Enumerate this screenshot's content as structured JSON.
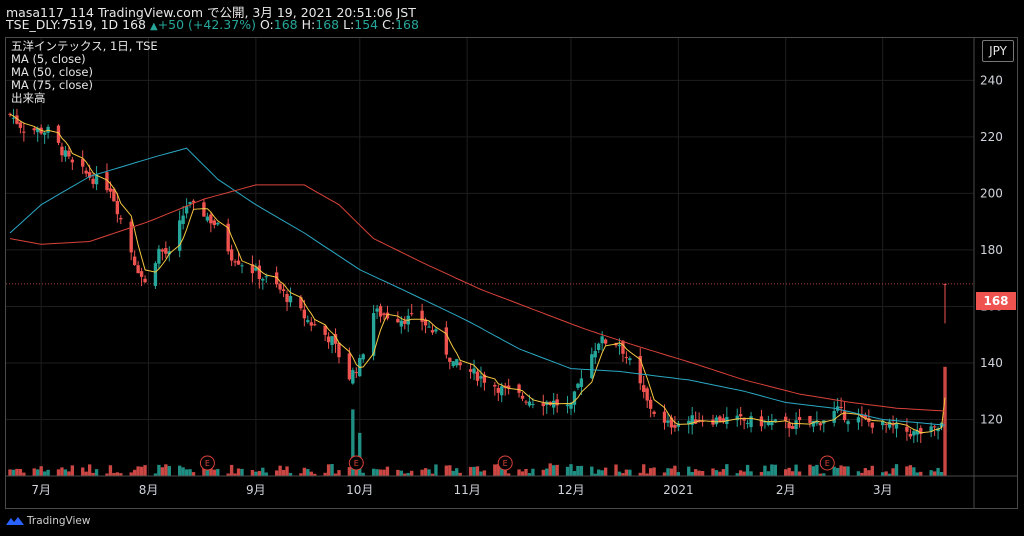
{
  "header": {
    "line1": "masa117_114 TradingView.com で公開, 3月 19, 2021 20:51:06 JST",
    "symbol": "TSE_DLY:7519, 1D 168",
    "change": "+50 (+42.37%)",
    "o_label": "O:",
    "o_val": "168",
    "h_label": "H:",
    "h_val": "168",
    "l_label": "L:",
    "l_val": "154",
    "c_label": "C:",
    "c_val": "168"
  },
  "legend": {
    "title": "五洋インテックス, 1日, TSE",
    "ma5": "MA (5, close)",
    "ma50": "MA (50, close)",
    "ma75": "MA (75, close)",
    "volume": "出来高"
  },
  "currency": "JPY",
  "last_price_label": "168",
  "footer": {
    "logo_text": "TradingView"
  },
  "colors": {
    "up": "#26a69a",
    "down": "#ef5350",
    "ma5": "#f5c842",
    "ma50": "#2ba8c4",
    "ma75": "#d9433a",
    "grid": "#1e1e1e",
    "background": "#000000",
    "earnings": "#d9433a"
  },
  "chart_data": {
    "type": "candlestick",
    "y_axis": {
      "min": 100,
      "max": 255,
      "ticks": [
        120,
        140,
        160,
        180,
        200,
        220,
        240
      ]
    },
    "x_axis_labels": [
      "7月",
      "8月",
      "9月",
      "10月",
      "11月",
      "12月",
      "2021",
      "2月",
      "3月"
    ],
    "x_axis_label_dates": [
      "2020-07-01",
      "2020-08-01",
      "2020-09-01",
      "2020-10-01",
      "2020-11-01",
      "2020-12-01",
      "2021-01-01",
      "2021-02-01",
      "2021-03-01"
    ],
    "date_range": [
      "2020-06-22",
      "2021-03-19"
    ],
    "close_anchors": [
      [
        "2020-06-22",
        228
      ],
      [
        "2020-06-26",
        223
      ],
      [
        "2020-07-03",
        222
      ],
      [
        "2020-07-10",
        210
      ],
      [
        "2020-07-15",
        206
      ],
      [
        "2020-07-21",
        202
      ],
      [
        "2020-07-28",
        176
      ],
      [
        "2020-07-31",
        168
      ],
      [
        "2020-08-04",
        180
      ],
      [
        "2020-08-07",
        178
      ],
      [
        "2020-08-12",
        196
      ],
      [
        "2020-08-17",
        193
      ],
      [
        "2020-08-21",
        188
      ],
      [
        "2020-08-25",
        178
      ],
      [
        "2020-09-01",
        172
      ],
      [
        "2020-09-07",
        167
      ],
      [
        "2020-09-11",
        162
      ],
      [
        "2020-09-16",
        155
      ],
      [
        "2020-09-23",
        148
      ],
      [
        "2020-09-28",
        135
      ],
      [
        "2020-10-01",
        140
      ],
      [
        "2020-10-05",
        158
      ],
      [
        "2020-10-12",
        156
      ],
      [
        "2020-10-19",
        155
      ],
      [
        "2020-10-23",
        150
      ],
      [
        "2020-10-28",
        140
      ],
      [
        "2020-11-05",
        135
      ],
      [
        "2020-11-12",
        130
      ],
      [
        "2020-11-19",
        127
      ],
      [
        "2020-11-26",
        126
      ],
      [
        "2020-12-01",
        124
      ],
      [
        "2020-12-04",
        136
      ],
      [
        "2020-12-09",
        148
      ],
      [
        "2020-12-15",
        147
      ],
      [
        "2020-12-18",
        140
      ],
      [
        "2020-12-23",
        126
      ],
      [
        "2020-12-28",
        118
      ],
      [
        "2021-01-06",
        120
      ],
      [
        "2021-01-15",
        120
      ],
      [
        "2021-01-25",
        119
      ],
      [
        "2021-02-02",
        118
      ],
      [
        "2021-02-10",
        119
      ],
      [
        "2021-02-16",
        123
      ],
      [
        "2021-02-19",
        121
      ],
      [
        "2021-02-25",
        119
      ],
      [
        "2021-03-05",
        117
      ],
      [
        "2021-03-10",
        115
      ],
      [
        "2021-03-16",
        116
      ],
      [
        "2021-03-18",
        118
      ],
      [
        "2021-03-19",
        168
      ]
    ],
    "ma50_anchors": [
      [
        "2020-06-22",
        186
      ],
      [
        "2020-07-01",
        196
      ],
      [
        "2020-07-15",
        206
      ],
      [
        "2020-08-03",
        213
      ],
      [
        "2020-08-12",
        216
      ],
      [
        "2020-08-21",
        205
      ],
      [
        "2020-09-01",
        196
      ],
      [
        "2020-09-15",
        186
      ],
      [
        "2020-10-01",
        173
      ],
      [
        "2020-10-15",
        165
      ],
      [
        "2020-11-01",
        155
      ],
      [
        "2020-11-16",
        145
      ],
      [
        "2020-12-01",
        138
      ],
      [
        "2020-12-15",
        137
      ],
      [
        "2021-01-04",
        134
      ],
      [
        "2021-01-20",
        130
      ],
      [
        "2021-02-01",
        126
      ],
      [
        "2021-02-15",
        124
      ],
      [
        "2021-03-01",
        120
      ],
      [
        "2021-03-19",
        118
      ]
    ],
    "ma75_anchors": [
      [
        "2020-06-22",
        184
      ],
      [
        "2020-07-01",
        182
      ],
      [
        "2020-07-15",
        183
      ],
      [
        "2020-08-01",
        190
      ],
      [
        "2020-08-17",
        198
      ],
      [
        "2020-09-01",
        203
      ],
      [
        "2020-09-15",
        203
      ],
      [
        "2020-09-25",
        196
      ],
      [
        "2020-10-05",
        184
      ],
      [
        "2020-10-20",
        175
      ],
      [
        "2020-11-05",
        166
      ],
      [
        "2020-11-20",
        159
      ],
      [
        "2020-12-05",
        152
      ],
      [
        "2020-12-20",
        146
      ],
      [
        "2021-01-05",
        140
      ],
      [
        "2021-01-20",
        134
      ],
      [
        "2021-02-05",
        129
      ],
      [
        "2021-02-20",
        126
      ],
      [
        "2021-03-05",
        124
      ],
      [
        "2021-03-19",
        123
      ]
    ],
    "last_close": 168,
    "last_day": {
      "date": "2021-03-19",
      "open": 168,
      "high": 168,
      "low": 154,
      "close": 168
    },
    "volume_spikes": [
      [
        "2020-09-29",
        0.85
      ],
      [
        "2020-10-01",
        0.55
      ],
      [
        "2020-11-25",
        0.45
      ],
      [
        "2020-12-11",
        0.3
      ],
      [
        "2021-03-19",
        1.0
      ]
    ],
    "earnings_marker_dates": [
      "2020-08-18",
      "2020-09-30",
      "2020-11-12",
      "2021-02-13"
    ],
    "earnings_marker_label": "E"
  }
}
